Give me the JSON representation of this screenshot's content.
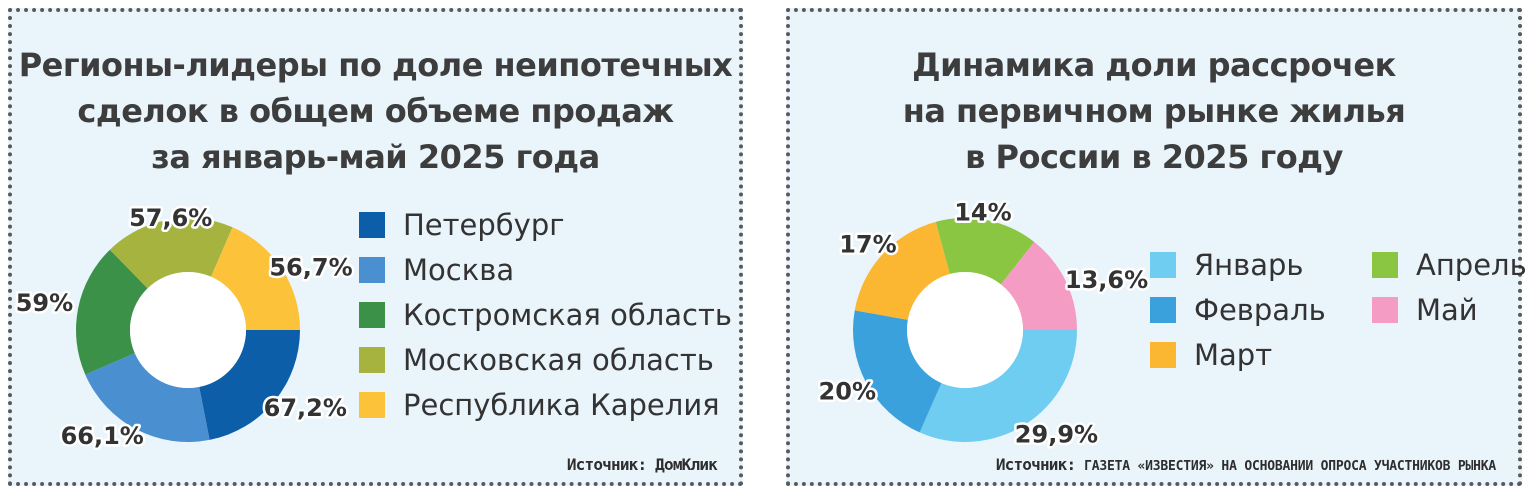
{
  "chart_data": [
    {
      "type": "pie",
      "variant": "donut",
      "title_lines": [
        "Регионы-лидеры по доле неипотечных",
        "сделок в общем объеме продаж",
        "за январь-май 2025 года"
      ],
      "categories": [
        "Петербург",
        "Москва",
        "Костромская область",
        "Московская область",
        "Республика Карелия"
      ],
      "values": [
        67.2,
        66.1,
        59,
        57.6,
        56.7
      ],
      "value_labels": [
        "67,2%",
        "66,1%",
        "59%",
        "57,6%",
        "56,7%"
      ],
      "colors": [
        "#0d5ea8",
        "#4a8fd0",
        "#3c9148",
        "#a6b43f",
        "#fbc23a"
      ],
      "legend_position": "right",
      "source": "Источник: ДомКлик"
    },
    {
      "type": "pie",
      "variant": "donut",
      "title_lines": [
        "Динамика доли рассрочек",
        "на первичном рынке жилья",
        "в России в 2025 году"
      ],
      "categories": [
        "Январь",
        "Февраль",
        "Март",
        "Апрель",
        "Май"
      ],
      "values": [
        29.9,
        20,
        17,
        14,
        13.6
      ],
      "value_labels": [
        "29,9%",
        "20%",
        "17%",
        "14%",
        "13,6%"
      ],
      "colors": [
        "#6fcdf1",
        "#3aa1dc",
        "#fbb731",
        "#8ac641",
        "#f49cc4"
      ],
      "legend_position": "right",
      "source_prefix": "Источник:",
      "source_rest": "газета «Известия» на основании опроса участников рынка"
    }
  ]
}
